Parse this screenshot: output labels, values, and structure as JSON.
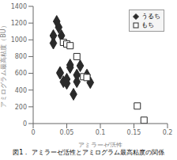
{
  "chart_data": {
    "type": "scatter",
    "xlabel": "アミラーゼ活性",
    "ylabel": "アミログラム最高粘度（BU）",
    "caption": "図1． アミラーゼ活性とアミログラム最高粘度の関係",
    "xlim": [
      0,
      0.2
    ],
    "ylim": [
      0,
      1400
    ],
    "xticks": [
      0,
      0.05,
      0.1,
      0.15,
      0.2
    ],
    "yticks": [
      0,
      200,
      400,
      600,
      800,
      1000,
      1200,
      1400
    ],
    "grid": false,
    "legend": "upper right",
    "series": [
      {
        "name": "うるち",
        "color": "#2a2a2a",
        "marker": "diamond",
        "x": [
          0.03,
          0.03,
          0.035,
          0.038,
          0.04,
          0.04,
          0.042,
          0.045,
          0.05,
          0.05,
          0.055,
          0.055,
          0.06,
          0.065,
          0.065,
          0.07,
          0.08,
          0.085
        ],
        "values": [
          960,
          1050,
          1220,
          1150,
          600,
          610,
          1050,
          500,
          480,
          530,
          700,
          670,
          350,
          580,
          500,
          690,
          580,
          490
        ]
      },
      {
        "name": "もち",
        "color": "#2a2a2a",
        "marker": "open_square",
        "x": [
          0.045,
          0.05,
          0.055,
          0.065,
          0.075,
          0.08,
          0.155,
          0.165
        ],
        "values": [
          970,
          950,
          930,
          800,
          560,
          550,
          210,
          40
        ]
      }
    ]
  }
}
